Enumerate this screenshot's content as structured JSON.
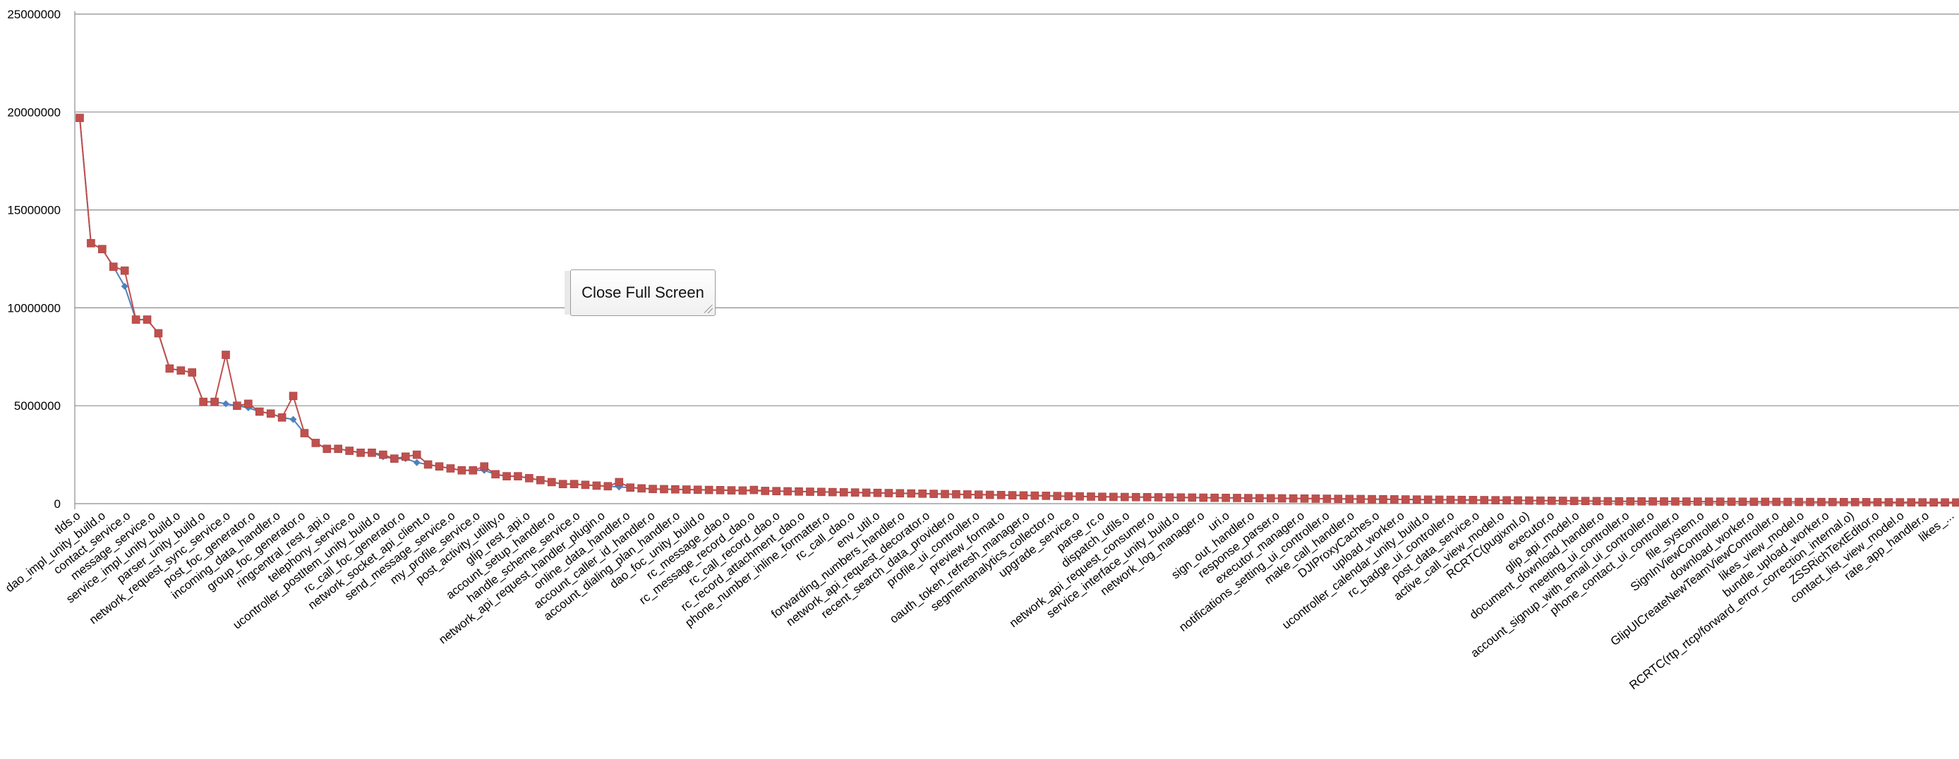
{
  "close_button": {
    "label": "Close Full Screen"
  },
  "chart_data": {
    "type": "line",
    "ylim": [
      0,
      25000000
    ],
    "yticks": [
      0,
      5000000,
      10000000,
      15000000,
      20000000,
      25000000
    ],
    "ytick_labels": [
      "0",
      "5000000",
      "10000000",
      "15000000",
      "20000000",
      "25000000"
    ],
    "grid": true,
    "legend": "none",
    "x_labels": [
      "tlds.o",
      "dao_impl_unity_build.o",
      "contact_service.o",
      "message_service.o",
      "service_impl_unity_build.o",
      "parser_unity_build.o",
      "network_request_sync_service.o",
      "post_foc_generator.o",
      "incoming_data_handler.o",
      "group_foc_generator.o",
      "ringcentral_rest_api.o",
      "telephony_service.o",
      "ucontroller_postItem_unity_build.o",
      "rc_call_foc_generator.o",
      "network_socket_api_client.o",
      "send_message_service.o",
      "my_profile_service.o",
      "post_activity_utility.o",
      "glip_rest_api.o",
      "account_setup_handler.o",
      "handle_scheme_service.o",
      "network_api_request_handler_plugin.o",
      "online_data_handler.o",
      "account_caller_id_handler.o",
      "account_dialing_plan_handler.o",
      "dao_foc_unity_build.o",
      "rc_message_dao.o",
      "rc_message_record_dao.o",
      "rc_call_record_dao.o",
      "rc_record_attachment_dao.o",
      "phone_number_inline_formatter.o",
      "rc_call_dao.o",
      "env_util.o",
      "forwarding_numbers_handler.o",
      "network_api_request_decorator.o",
      "recent_search_data_provider.o",
      "profile_ui_controller.o",
      "preview_format.o",
      "oauth_token_refresh_manager.o",
      "segmentanalytics_collector.o",
      "upgrade_service.o",
      "parse_rc.o",
      "dispatch_utils.o",
      "network_api_request_consumer.o",
      "service_interface_unity_build.o",
      "network_log_manager.o",
      "uri.o",
      "sign_out_handler.o",
      "response_parser.o",
      "executor_manager.o",
      "notifications_setting_ui_controller.o",
      "make_call_handler.o",
      "DJIProxyCaches.o",
      "upload_worker.o",
      "ucontroller_calendar_unity_build.o",
      "rc_badge_ui_controller.o",
      "post_data_service.o",
      "active_call_view_model.o",
      "RCRTC(pugixml.o)",
      "executor.o",
      "glip_api_model.o",
      "document_download_handler.o",
      "meeting_ui_controller.o",
      "account_signup_with_email_ui_controller.o",
      "phone_contact_ui_controller.o",
      "file_system.o",
      "SignInViewController.o",
      "download_worker.o",
      "GlipUICreateNewTeamViewController.o",
      "likes_view_model.o",
      "bundle_upload_worker.o",
      "RCRTC(rtp_rtcp/forward_error_correction_internal.o)",
      "ZSSRichTextEditor.o",
      "contact_list_view_model.o",
      "rate_app_handler.o",
      "likes_..."
    ],
    "series": [
      {
        "color": "#4f81bd",
        "marker": "diamond",
        "values": [
          19700000,
          13300000,
          13000000,
          12100000,
          11100000,
          9400000,
          9400000,
          8700000,
          6900000,
          6800000,
          6700000,
          5200000,
          5200000,
          5100000,
          5000000,
          4900000,
          4700000,
          4600000,
          4400000,
          4300000,
          3600000,
          3100000,
          2800000,
          2800000,
          2700000,
          2600000,
          2600000,
          2400000,
          2300000,
          2300000,
          2100000,
          2000000,
          1900000,
          1800000,
          1700000,
          1700000,
          1700000,
          1500000,
          1400000,
          1400000,
          1300000,
          1200000,
          1100000,
          1000000,
          1000000,
          960000,
          920000,
          890000,
          850000,
          820000,
          780000,
          750000,
          740000,
          730000,
          720000,
          710000,
          700000,
          690000,
          680000,
          670000,
          660000,
          650000,
          640000,
          630000,
          620000,
          610000,
          600000,
          590000,
          580000,
          570000,
          560000,
          550000,
          540000,
          530000,
          520000,
          510000,
          500000,
          490000,
          480000,
          470000,
          460000,
          450000,
          440000,
          430000,
          420000,
          410000,
          400000,
          390000,
          380000,
          370000,
          360000,
          350000,
          345000,
          340000,
          335000,
          330000,
          325000,
          320000,
          315000,
          310000,
          305000,
          300000,
          295000,
          290000,
          285000,
          280000,
          275000,
          270000,
          265000,
          260000,
          255000,
          250000,
          245000,
          240000,
          235000,
          230000,
          225000,
          220000,
          215000,
          210000,
          205000,
          200000,
          195000,
          190000,
          185000,
          180000,
          175000,
          170000,
          165000,
          160000,
          155000,
          150000,
          145000,
          140000,
          135000,
          130000,
          125000,
          120000,
          118000,
          116000,
          114000,
          112000,
          110000,
          108000,
          106000,
          104000,
          102000,
          100000,
          98000,
          96000,
          94000,
          92000,
          90000,
          88000,
          86000,
          84000,
          82000,
          80000,
          78000,
          76000,
          74000,
          72000,
          70000,
          68000,
          66000,
          64000,
          62000,
          60000
        ]
      },
      {
        "color": "#c0504d",
        "marker": "square",
        "values": [
          19700000,
          13300000,
          13000000,
          12100000,
          11900000,
          9400000,
          9400000,
          8700000,
          6900000,
          6800000,
          6700000,
          5200000,
          5200000,
          7600000,
          5000000,
          5100000,
          4700000,
          4600000,
          4400000,
          5500000,
          3600000,
          3100000,
          2800000,
          2800000,
          2700000,
          2600000,
          2600000,
          2500000,
          2300000,
          2400000,
          2500000,
          2000000,
          1900000,
          1800000,
          1700000,
          1700000,
          1900000,
          1500000,
          1400000,
          1400000,
          1300000,
          1200000,
          1100000,
          1000000,
          1000000,
          960000,
          920000,
          890000,
          1100000,
          820000,
          780000,
          750000,
          740000,
          730000,
          720000,
          710000,
          700000,
          690000,
          680000,
          670000,
          700000,
          650000,
          640000,
          630000,
          620000,
          610000,
          600000,
          590000,
          580000,
          570000,
          560000,
          550000,
          540000,
          530000,
          520000,
          510000,
          500000,
          490000,
          480000,
          470000,
          460000,
          450000,
          440000,
          430000,
          420000,
          410000,
          400000,
          390000,
          380000,
          370000,
          360000,
          350000,
          345000,
          340000,
          335000,
          330000,
          325000,
          320000,
          315000,
          310000,
          305000,
          300000,
          295000,
          290000,
          285000,
          280000,
          275000,
          270000,
          265000,
          260000,
          255000,
          250000,
          245000,
          240000,
          235000,
          230000,
          225000,
          220000,
          215000,
          210000,
          205000,
          200000,
          195000,
          190000,
          185000,
          180000,
          175000,
          170000,
          165000,
          160000,
          155000,
          150000,
          145000,
          140000,
          135000,
          130000,
          125000,
          120000,
          118000,
          116000,
          114000,
          112000,
          110000,
          108000,
          106000,
          104000,
          102000,
          100000,
          98000,
          96000,
          94000,
          92000,
          90000,
          88000,
          86000,
          84000,
          82000,
          80000,
          78000,
          76000,
          74000,
          72000,
          70000,
          68000,
          66000,
          64000,
          62000,
          60000
        ]
      }
    ]
  }
}
